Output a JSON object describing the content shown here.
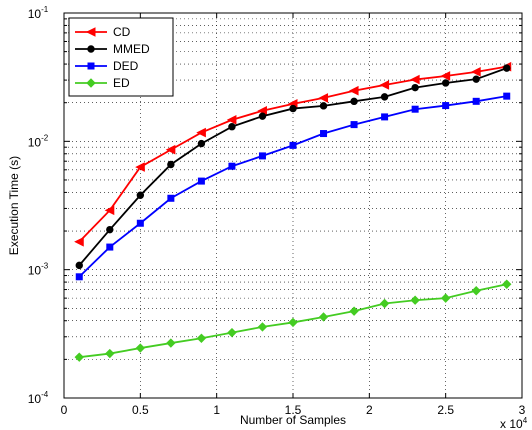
{
  "chart_data": {
    "type": "line",
    "title": "",
    "xlabel": "Number of Samples",
    "ylabel": "Execution Time (s)",
    "x_multiplier_label": "x 10",
    "x_multiplier_exp": "4",
    "xlim": [
      0,
      30000
    ],
    "ylim": [
      0.0001,
      0.1
    ],
    "yscale": "log",
    "grid": true,
    "legend_position": "top-left",
    "x_ticks": [
      0,
      5000,
      10000,
      15000,
      20000,
      25000,
      30000
    ],
    "x_tick_labels": [
      "0",
      "0.5",
      "1",
      "1.5",
      "2",
      "2.5",
      "3"
    ],
    "y_ticks": [
      0.0001,
      0.001,
      0.01,
      0.1
    ],
    "y_tick_labels": [
      {
        "base": "10",
        "exp": "-4"
      },
      {
        "base": "10",
        "exp": "-3"
      },
      {
        "base": "10",
        "exp": "-2"
      },
      {
        "base": "10",
        "exp": "-1"
      }
    ],
    "x": [
      1000,
      3000,
      5000,
      7000,
      9000,
      11000,
      13000,
      15000,
      17000,
      19000,
      21000,
      23000,
      25000,
      27000,
      29000
    ],
    "series": [
      {
        "name": "CD",
        "color": "#ff0000",
        "marker": "triangle-left",
        "values": [
          0.00165,
          0.0029,
          0.0063,
          0.0086,
          0.0117,
          0.0147,
          0.0173,
          0.0196,
          0.0218,
          0.0248,
          0.0275,
          0.0303,
          0.0323,
          0.0348,
          0.0382
        ]
      },
      {
        "name": "MMED",
        "color": "#000000",
        "marker": "circle",
        "values": [
          0.00108,
          0.00205,
          0.0038,
          0.0066,
          0.0096,
          0.013,
          0.0157,
          0.018,
          0.0189,
          0.0205,
          0.0222,
          0.0262,
          0.0285,
          0.0305,
          0.0372
        ]
      },
      {
        "name": "DED",
        "color": "#0000ff",
        "marker": "square",
        "values": [
          0.00088,
          0.0015,
          0.0023,
          0.0036,
          0.0049,
          0.0064,
          0.0077,
          0.0093,
          0.0115,
          0.0135,
          0.0155,
          0.0178,
          0.019,
          0.0205,
          0.0225
        ]
      },
      {
        "name": "ED",
        "color": "#44cc22",
        "marker": "diamond",
        "values": [
          0.000208,
          0.000222,
          0.000245,
          0.000268,
          0.000292,
          0.000323,
          0.000358,
          0.000388,
          0.000428,
          0.000475,
          0.000545,
          0.000578,
          0.0006,
          0.000685,
          0.00077
        ]
      }
    ]
  }
}
